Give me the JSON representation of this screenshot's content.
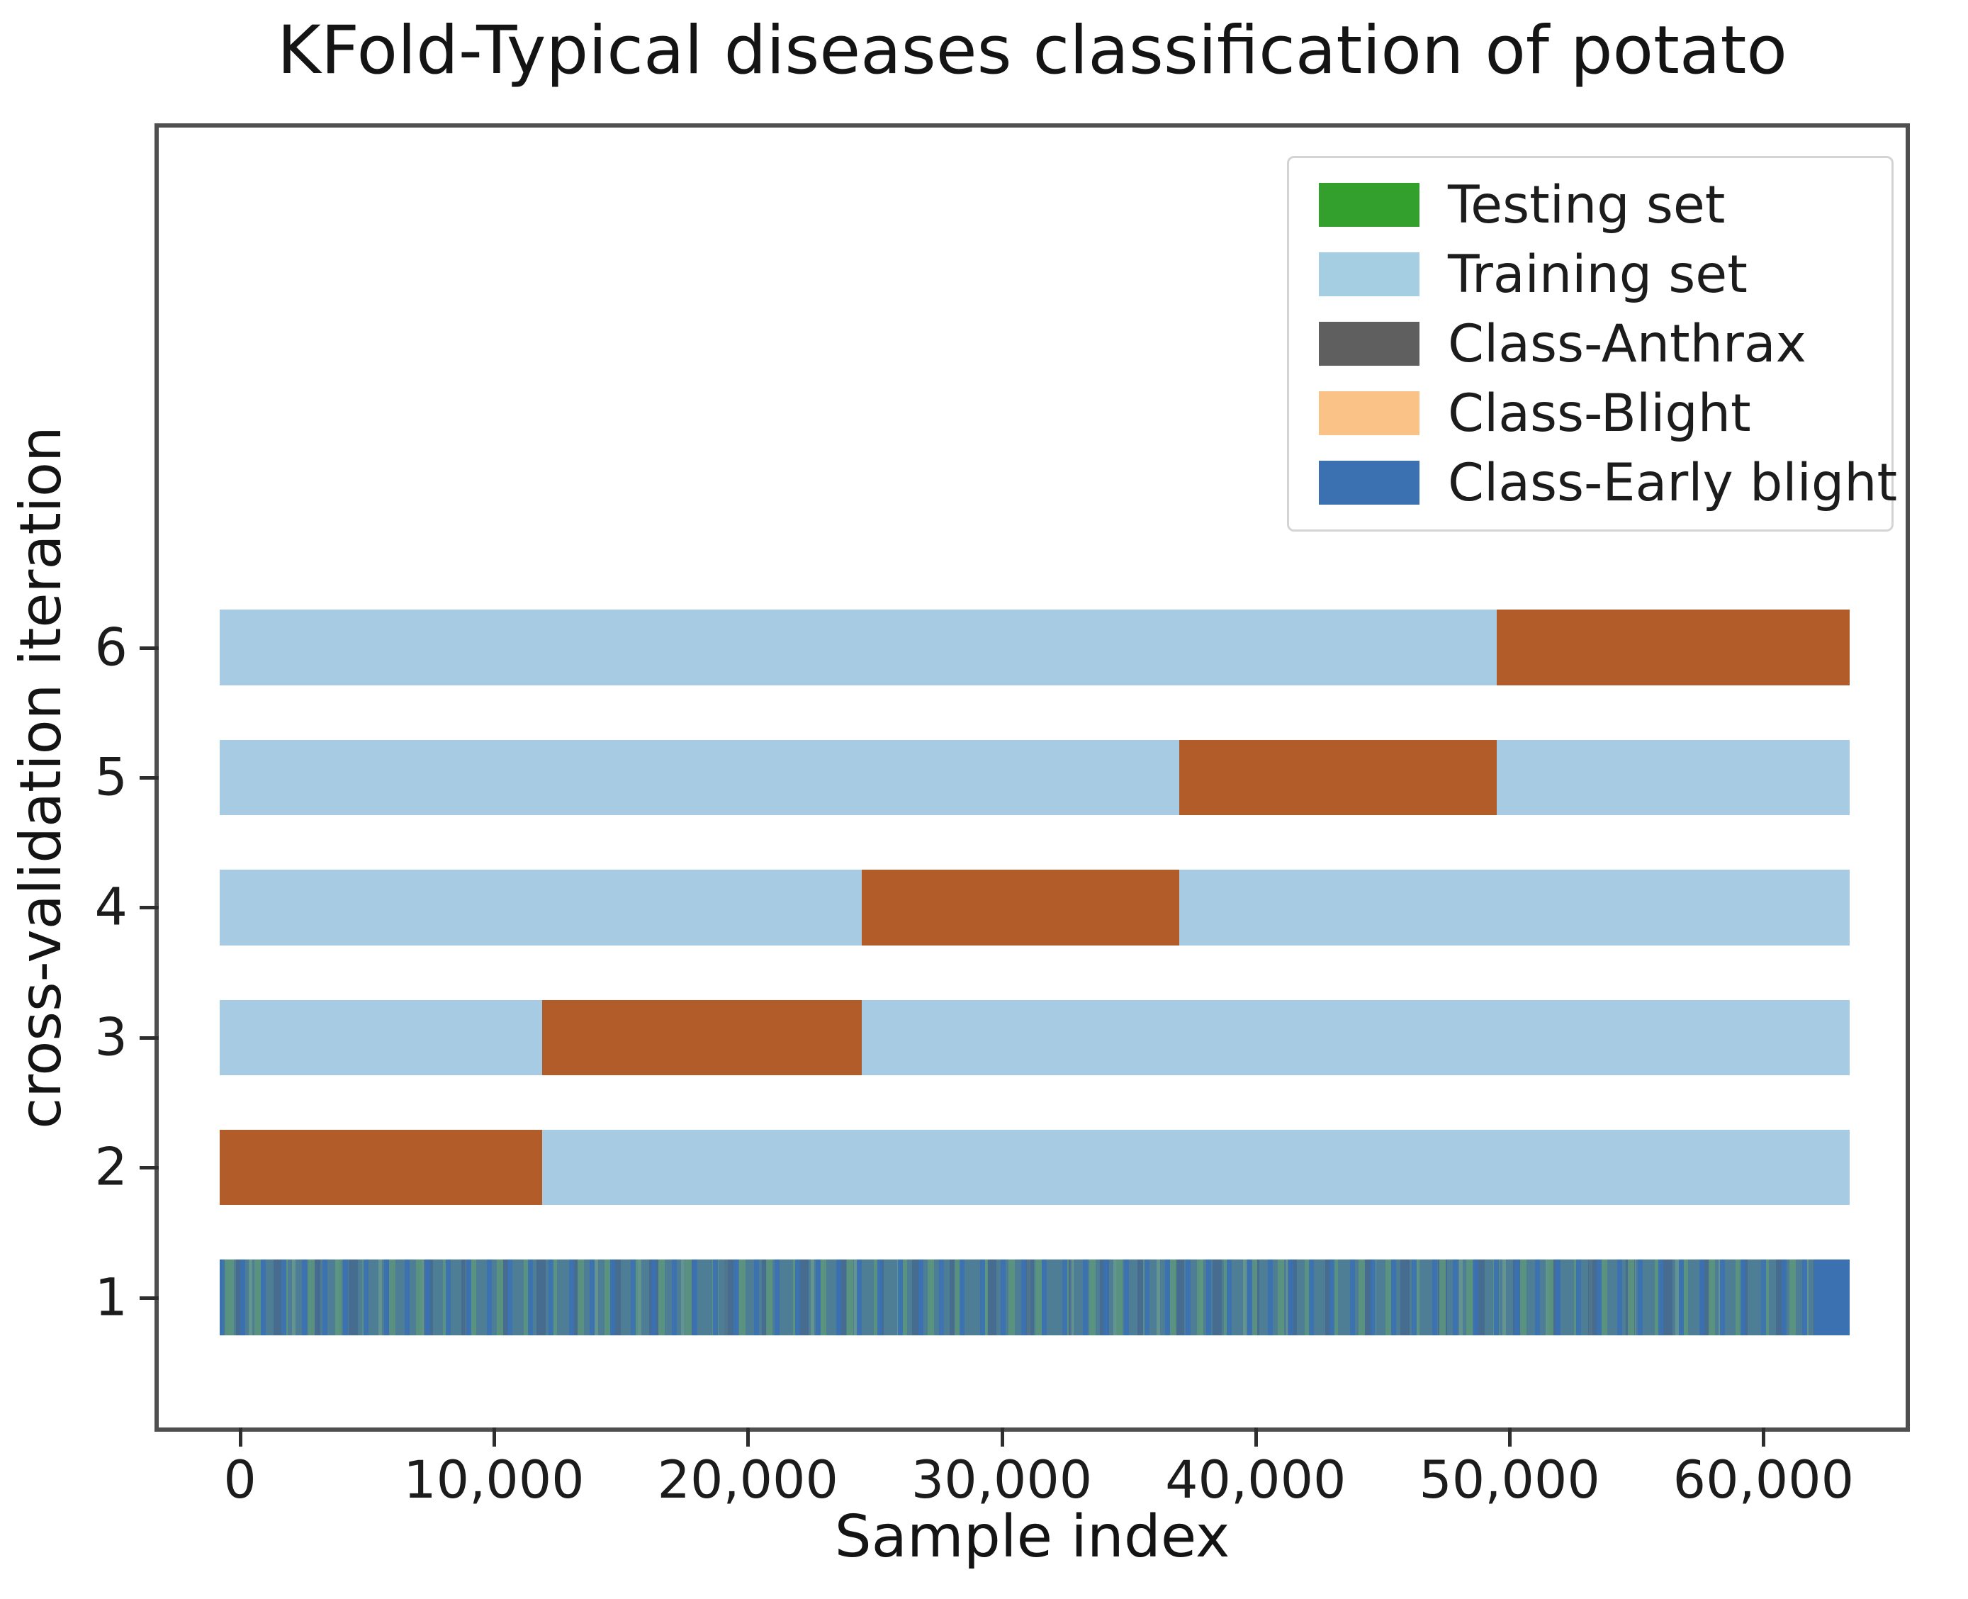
{
  "chart_data": {
    "type": "bar",
    "title": "KFold-Typical diseases classification of potato",
    "xlabel": "Sample index",
    "ylabel": "cross-validation iteration",
    "xlim": [
      -3200,
      65600
    ],
    "ylim": [
      0,
      10
    ],
    "n_samples": 63400,
    "bar_half_height": 0.29,
    "grid": false,
    "legend_position": "upper right",
    "x_ticks": [
      {
        "value": 0,
        "label": "0"
      },
      {
        "value": 10000,
        "label": "10,000"
      },
      {
        "value": 20000,
        "label": "20,000"
      },
      {
        "value": 30000,
        "label": "30,000"
      },
      {
        "value": 40000,
        "label": "40,000"
      },
      {
        "value": 50000,
        "label": "50,000"
      },
      {
        "value": 60000,
        "label": "60,000"
      }
    ],
    "y_ticks": [
      {
        "value": 6,
        "label": "6"
      },
      {
        "value": 5,
        "label": "5"
      },
      {
        "value": 4,
        "label": "4"
      },
      {
        "value": 3,
        "label": "3"
      },
      {
        "value": 2,
        "label": "2"
      },
      {
        "value": 1,
        "label": "1"
      }
    ],
    "colors": {
      "training": "#a6cbe2",
      "testing": "#b25c2a",
      "class_early_blight": "#3b70b1",
      "class_mix_base": "#4e7e95"
    },
    "class_stripe_palette": [
      "#3a71b3",
      "#5c967d",
      "#42608a",
      "#78aa8c",
      "#4e7e95"
    ],
    "rows": [
      {
        "iteration": 6,
        "segments": [
          {
            "role": "training",
            "start": -800,
            "end": 49500
          },
          {
            "role": "testing",
            "start": 49500,
            "end": 63400
          }
        ]
      },
      {
        "iteration": 5,
        "segments": [
          {
            "role": "training",
            "start": -800,
            "end": 37000
          },
          {
            "role": "testing",
            "start": 37000,
            "end": 49500
          },
          {
            "role": "training",
            "start": 49500,
            "end": 63400
          }
        ]
      },
      {
        "iteration": 4,
        "segments": [
          {
            "role": "training",
            "start": -800,
            "end": 24500
          },
          {
            "role": "testing",
            "start": 24500,
            "end": 37000
          },
          {
            "role": "training",
            "start": 37000,
            "end": 63400
          }
        ]
      },
      {
        "iteration": 3,
        "segments": [
          {
            "role": "training",
            "start": -800,
            "end": 11900
          },
          {
            "role": "testing",
            "start": 11900,
            "end": 24500
          },
          {
            "role": "training",
            "start": 24500,
            "end": 63400
          }
        ]
      },
      {
        "iteration": 2,
        "segments": [
          {
            "role": "testing",
            "start": -800,
            "end": 11900
          },
          {
            "role": "training",
            "start": 11900,
            "end": 63400
          }
        ]
      },
      {
        "iteration": 1,
        "segments": [
          {
            "role": "class_mix",
            "start": -800,
            "end": 62000
          },
          {
            "role": "class_early_blight",
            "start": 62000,
            "end": 63400
          }
        ]
      }
    ],
    "legend": {
      "entries": [
        {
          "label": "Testing set",
          "color": "#339f2c"
        },
        {
          "label": "Training set",
          "color": "#a6cee3"
        },
        {
          "label": "Class-Anthrax",
          "color": "#5f5f5f"
        },
        {
          "label": "Class-Blight",
          "color": "#fac286"
        },
        {
          "label": "Class-Early blight",
          "color": "#3b70b1"
        }
      ]
    }
  }
}
